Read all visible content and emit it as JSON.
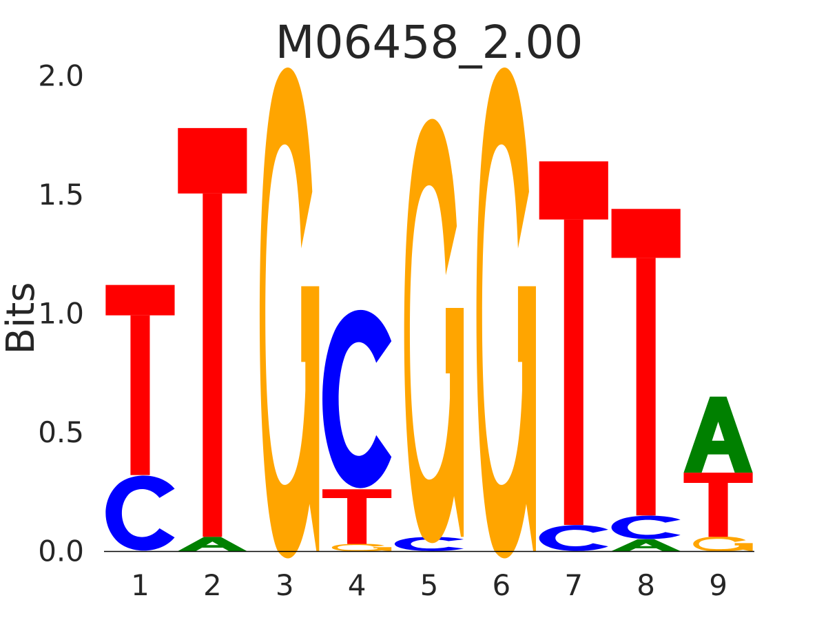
{
  "chart_data": {
    "type": "sequence-logo",
    "title": "M06458_2.00",
    "ylabel": "Bits",
    "xlabel": "",
    "ylim": [
      0,
      2.0
    ],
    "yticks": [
      "0.0",
      "0.5",
      "1.0",
      "1.5",
      "2.0"
    ],
    "yticks_values": [
      0,
      0.5,
      1.0,
      1.5,
      2.0
    ],
    "xticks": [
      "1",
      "2",
      "3",
      "4",
      "5",
      "6",
      "7",
      "8",
      "9"
    ],
    "grid": false,
    "colors": {
      "A": "#008000",
      "C": "#0000ff",
      "G": "#ffa500",
      "T": "#ff0000"
    },
    "positions": [
      {
        "position": "1",
        "letters": [
          {
            "base": "C",
            "bits": 0.32
          },
          {
            "base": "T",
            "bits": 0.8
          }
        ]
      },
      {
        "position": "2",
        "letters": [
          {
            "base": "A",
            "bits": 0.06
          },
          {
            "base": "T",
            "bits": 1.72
          }
        ]
      },
      {
        "position": "3",
        "letters": [
          {
            "base": "G",
            "bits": 1.99
          }
        ]
      },
      {
        "position": "4",
        "letters": [
          {
            "base": "G",
            "bits": 0.03
          },
          {
            "base": "T",
            "bits": 0.23
          },
          {
            "base": "C",
            "bits": 0.76
          }
        ]
      },
      {
        "position": "5",
        "letters": [
          {
            "base": "C",
            "bits": 0.06
          },
          {
            "base": "G",
            "bits": 1.72
          }
        ]
      },
      {
        "position": "6",
        "letters": [
          {
            "base": "G",
            "bits": 1.99
          }
        ]
      },
      {
        "position": "7",
        "letters": [
          {
            "base": "C",
            "bits": 0.11
          },
          {
            "base": "T",
            "bits": 1.53
          }
        ]
      },
      {
        "position": "8",
        "letters": [
          {
            "base": "A",
            "bits": 0.05
          },
          {
            "base": "C",
            "bits": 0.1
          },
          {
            "base": "T",
            "bits": 1.29
          }
        ]
      },
      {
        "position": "9",
        "letters": [
          {
            "base": "G",
            "bits": 0.06
          },
          {
            "base": "T",
            "bits": 0.27
          },
          {
            "base": "A",
            "bits": 0.32
          }
        ]
      }
    ]
  }
}
